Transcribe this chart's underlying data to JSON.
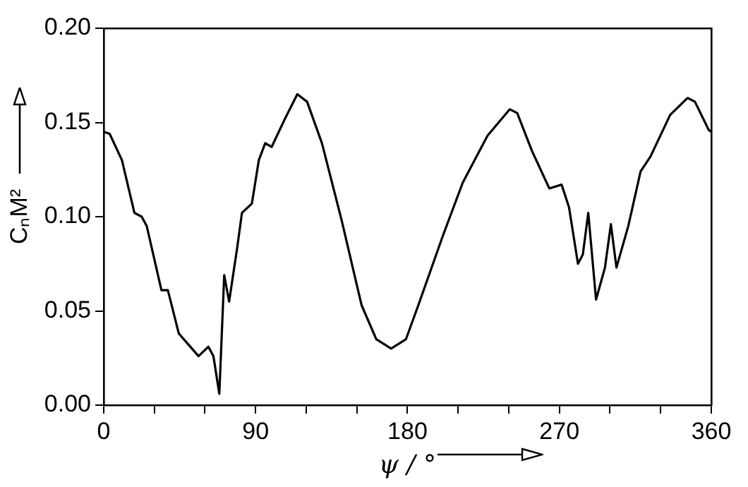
{
  "chart_data": {
    "type": "line",
    "xlabel": "ψ / °",
    "ylabel": "CₙM²",
    "series": [
      {
        "color": "#000000",
        "x": [
          0,
          3.5,
          10.8,
          18.2,
          22.5,
          25.5,
          34.2,
          38,
          44.5,
          56.2,
          62,
          65,
          68.5,
          71.4,
          74.3,
          79,
          81.9,
          87.8,
          91.9,
          95.7,
          99.5,
          107.4,
          114.7,
          120.5,
          129.3,
          141,
          152.8,
          161.5,
          170.3,
          179.1,
          186.4,
          201,
          212.7,
          227.4,
          240.6,
          245,
          253.7,
          264,
          271.3,
          275.7,
          281,
          283.9,
          287.1,
          291.7,
          297,
          300.5,
          303.8,
          310.8,
          318.1,
          324,
          335.6,
          345.9,
          350.3,
          358.5,
          360
        ],
        "values": [
          0.145,
          0.144,
          0.13,
          0.102,
          0.1,
          0.095,
          0.061,
          0.061,
          0.038,
          0.026,
          0.031,
          0.026,
          0.006,
          0.069,
          0.055,
          0.083,
          0.102,
          0.107,
          0.13,
          0.139,
          0.137,
          0.152,
          0.165,
          0.161,
          0.139,
          0.098,
          0.053,
          0.035,
          0.03,
          0.035,
          0.053,
          0.09,
          0.118,
          0.143,
          0.157,
          0.155,
          0.135,
          0.115,
          0.117,
          0.105,
          0.075,
          0.08,
          0.102,
          0.056,
          0.073,
          0.096,
          0.073,
          0.095,
          0.124,
          0.132,
          0.154,
          0.163,
          0.161,
          0.146,
          0.145
        ]
      }
    ],
    "xlim": [
      0,
      360
    ],
    "xticks": [
      0,
      {
        "value": 30,
        "label": null
      },
      {
        "value": 60,
        "label": null
      },
      90,
      {
        "value": 120,
        "label": null
      },
      {
        "value": 150,
        "label": null
      },
      180,
      {
        "value": 210,
        "label": null
      },
      {
        "value": 240,
        "label": null
      },
      270,
      {
        "value": 300,
        "label": null
      },
      {
        "value": 330,
        "label": null
      },
      360
    ],
    "ylim": [
      0,
      0.2
    ],
    "yticks": [
      {
        "value": 0,
        "label": "0.00"
      },
      0.05,
      {
        "value": 0.1,
        "label": "0.10"
      },
      0.15,
      {
        "value": 0.2,
        "label": "0.20"
      }
    ],
    "grid": false,
    "legend": false,
    "marker": "none",
    "line_style": "solid"
  }
}
